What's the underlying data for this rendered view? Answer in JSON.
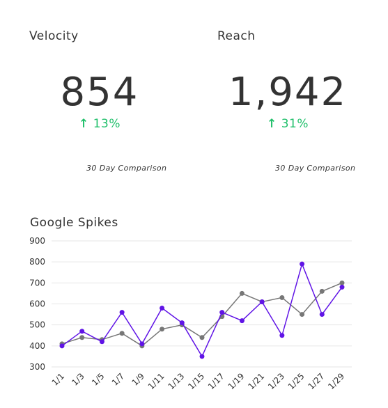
{
  "kpis": [
    {
      "title": "Velocity",
      "value": "854",
      "delta": "13%",
      "delta_direction": "up",
      "note": "30 Day Comparison",
      "delta_color": "#1fbf6a"
    },
    {
      "title": "Reach",
      "value": "1,942",
      "delta": "31%",
      "delta_direction": "up",
      "note": "30 Day Comparison",
      "delta_color": "#1fbf6a"
    }
  ],
  "chart_data": {
    "type": "line",
    "title": "Google Spikes",
    "xlabel": "",
    "ylabel": "",
    "x": [
      "1/1",
      "1/3",
      "1/5",
      "1/7",
      "1/9",
      "1/11",
      "1/13",
      "1/15",
      "1/17",
      "1/19",
      "1/21",
      "1/23",
      "1/25",
      "1/27",
      "1/29"
    ],
    "ylim": [
      300,
      900
    ],
    "yticks": [
      300,
      400,
      500,
      600,
      700,
      800,
      900
    ],
    "grid": true,
    "series": [
      {
        "color": "#777777",
        "values": [
          410,
          440,
          430,
          460,
          400,
          480,
          500,
          440,
          540,
          650,
          610,
          630,
          550,
          660,
          700
        ]
      },
      {
        "color": "#6014e6",
        "values": [
          400,
          470,
          420,
          560,
          410,
          580,
          510,
          350,
          560,
          520,
          610,
          450,
          790,
          550,
          680
        ]
      }
    ]
  }
}
